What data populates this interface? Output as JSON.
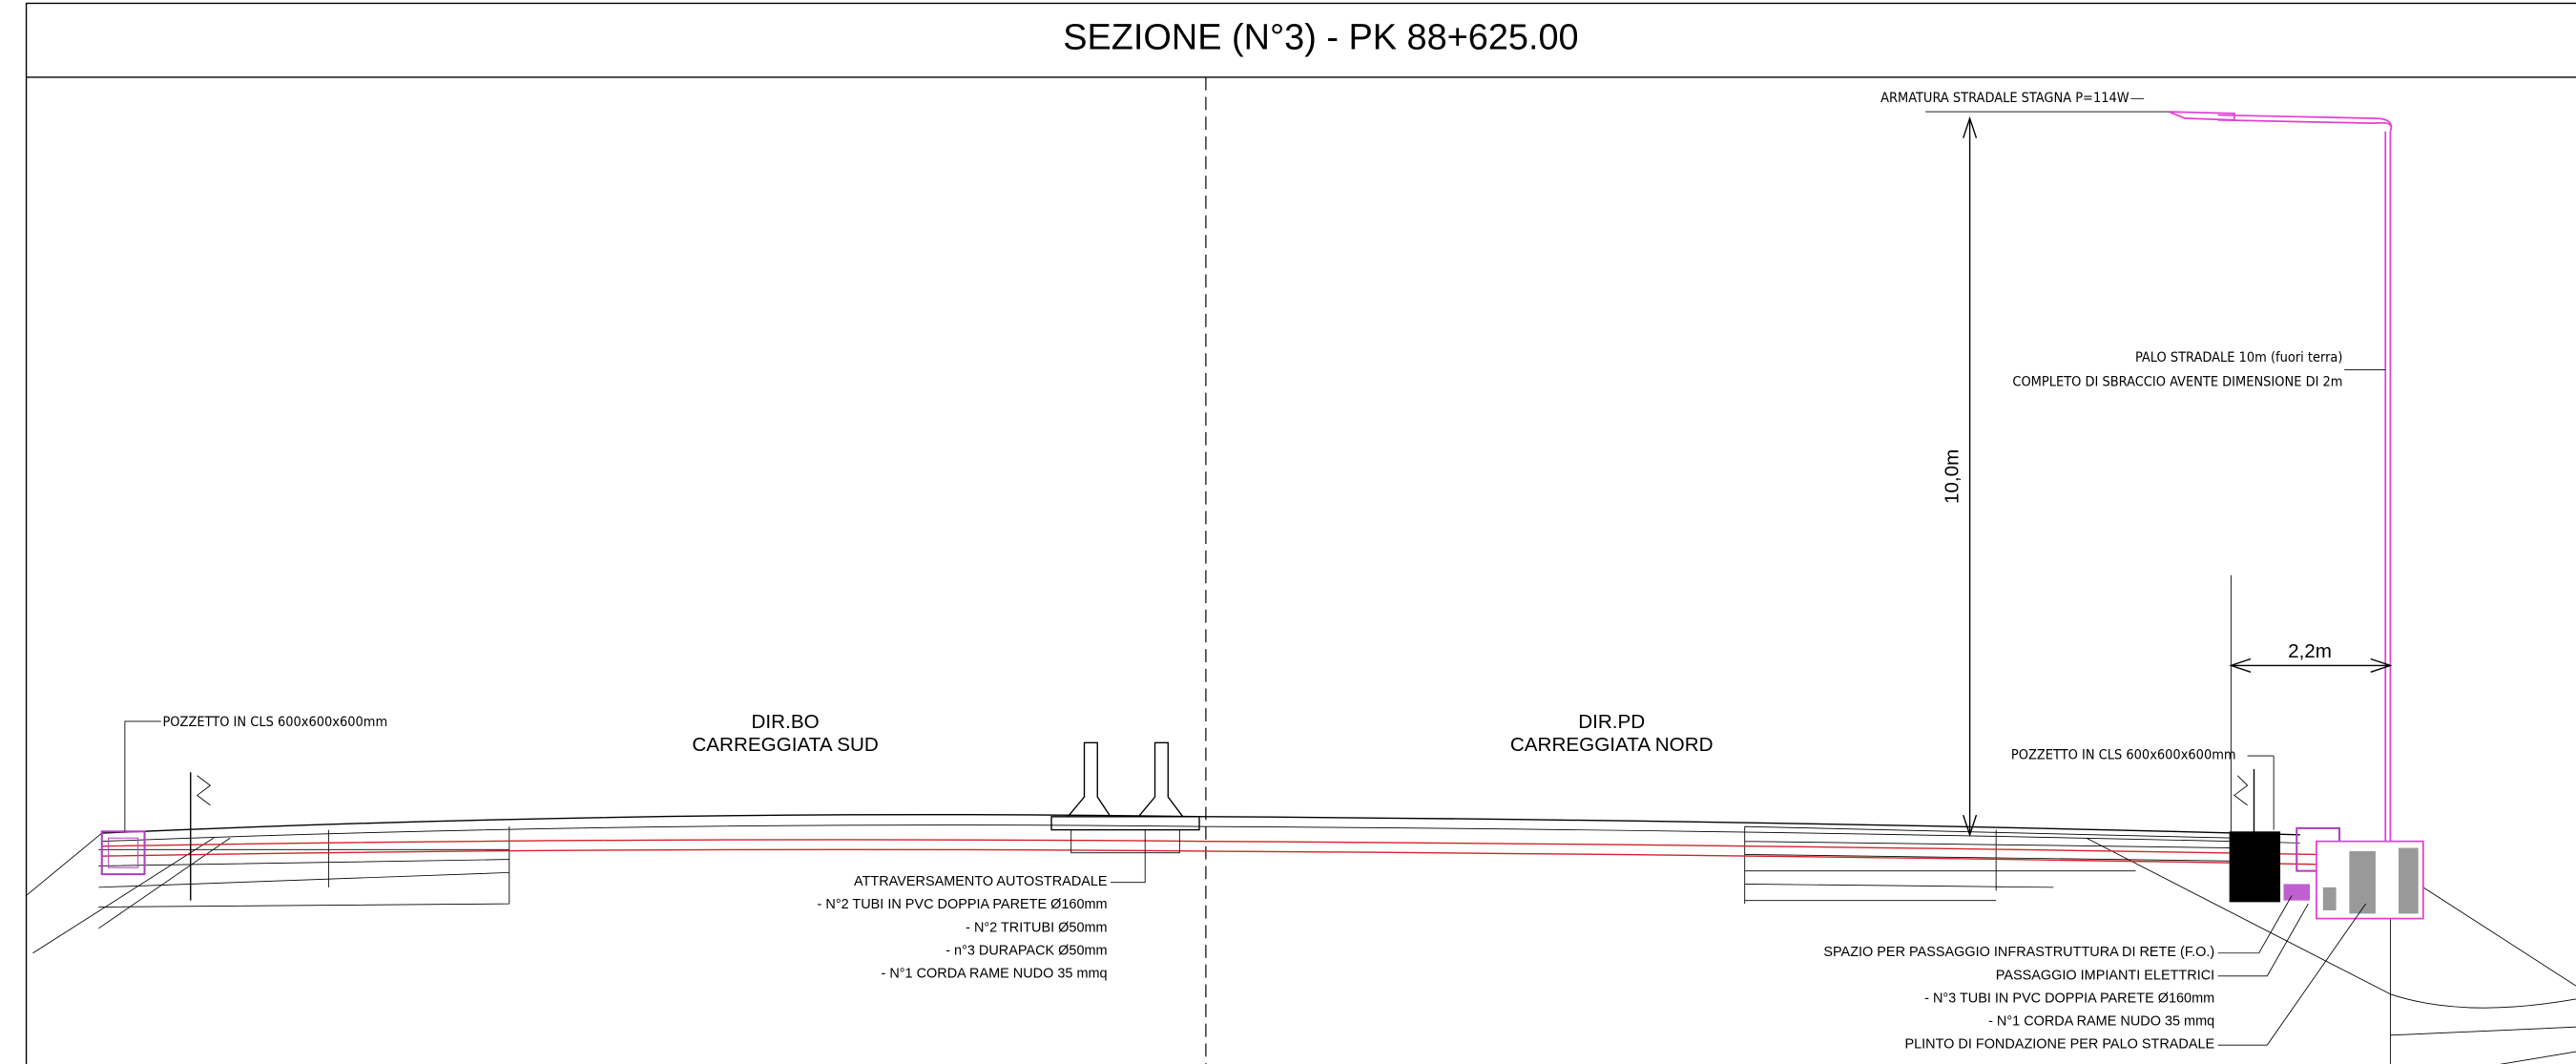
{
  "title": "SEZIONE (N°3) - PK 88+625.00",
  "labels": {
    "lamp": "ARMATURA STRADALE STAGNA P=114W",
    "pole": [
      "PALO STRADALE 10m (fuori terra)",
      "COMPLETO DI SBRACCIO AVENTE DIMENSIONE DI 2m"
    ],
    "height_dim": "10,0m",
    "offset_dim": "2,2m",
    "pit_left": "POZZETTO IN CLS 600x600x600mm",
    "pit_right": "POZZETTO IN CLS 600x600x600mm",
    "south": [
      "DIR.BO",
      "CARREGGIATA  SUD"
    ],
    "north": [
      "DIR.PD",
      "CARREGGIATA  NORD"
    ],
    "crossing": [
      "ATTRAVERSAMENTO AUTOSTRADALE",
      "- N°2 TUBI IN PVC DOPPIA PARETE Ø160mm",
      "- N°2 TRITUBI Ø50mm",
      "- n°3 DURAPACK Ø50mm",
      "- N°1 CORDA RAME NUDO 35 mmq"
    ],
    "side": [
      "SPAZIO PER PASSAGGIO INFRASTRUTTURA DI RETE (F.O.)",
      "PASSAGGIO IMPIANTI ELETTRICI",
      "- N°3 TUBI IN PVC DOPPIA PARETE Ø160mm",
      "- N°1 CORDA RAME NUDO 35 mmq",
      "PLINTO DI FONDAZIONE PER PALO STRADALE"
    ]
  }
}
